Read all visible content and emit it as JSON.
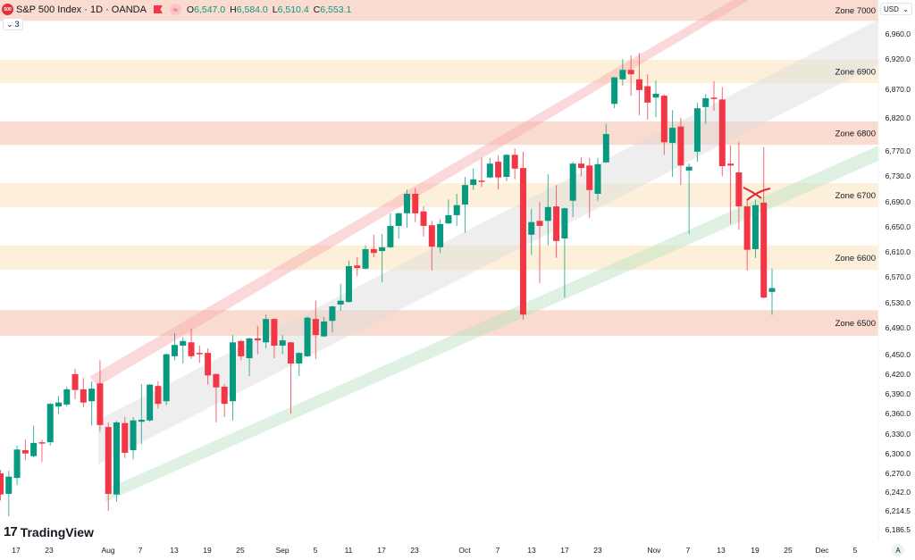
{
  "header": {
    "title": "S&P 500 Index · 1D · OANDA",
    "logo_text": "500",
    "ohlc": {
      "o_label": "O",
      "o": "6,547.0",
      "h_label": "H",
      "h": "6,584.0",
      "l_label": "L",
      "l": "6,510.4",
      "c_label": "C",
      "c": "6,553.1"
    },
    "collapse_label": "3",
    "icons": [
      "flag-icon",
      "approx-icon",
      "chevron-down-icon"
    ]
  },
  "price_axis": {
    "currency": "USD",
    "auto_label": "A",
    "ticks": [
      "6,960.0",
      "6,920.0",
      "6,870.0",
      "6,820.0",
      "6,770.0",
      "6,730.0",
      "6,690.0",
      "6,650.0",
      "6,610.0",
      "6,570.0",
      "6,530.0",
      "6,490.0",
      "6,450.0",
      "6,420.0",
      "6,390.0",
      "6,360.0",
      "6,330.0",
      "6,300.0",
      "6,270.0",
      "6,242.0",
      "6,214.5",
      "6,186.5"
    ]
  },
  "time_axis": {
    "ticks": [
      "17",
      "23",
      "Aug",
      "7",
      "13",
      "19",
      "25",
      "Sep",
      "5",
      "11",
      "17",
      "23",
      "Oct",
      "7",
      "13",
      "17",
      "23",
      "Nov",
      "7",
      "13",
      "19",
      "25",
      "Dec",
      "5"
    ]
  },
  "branding": {
    "name": "TradingView"
  },
  "colors": {
    "up": "#089981",
    "down": "#f23645",
    "zone_red": "#f9dccf",
    "zone_orange": "#fdf0db"
  },
  "zones": [
    {
      "label": "Zone 7000",
      "top": 7015,
      "bottom": 6978,
      "tone": "red"
    },
    {
      "label": "Zone 6900",
      "top": 6916,
      "bottom": 6879,
      "tone": "orange"
    },
    {
      "label": "Zone 6800",
      "top": 6818,
      "bottom": 6781,
      "tone": "red"
    },
    {
      "label": "Zone 6700",
      "top": 6720,
      "bottom": 6682,
      "tone": "orange"
    },
    {
      "label": "Zone 6600",
      "top": 6621,
      "bottom": 6582,
      "tone": "orange"
    },
    {
      "label": "Zone 6500",
      "top": 6518,
      "bottom": 6478,
      "tone": "red"
    }
  ],
  "chart_data": {
    "type": "candlestick",
    "symbol": "S&P 500 Index",
    "interval": "1D",
    "ylim": [
      6186.5,
      6990
    ],
    "candles": [
      [
        6270,
        6275,
        6229,
        6238
      ],
      [
        6239,
        6274,
        6205,
        6265
      ],
      [
        6263,
        6312,
        6252,
        6306
      ],
      [
        6305,
        6321,
        6290,
        6300
      ],
      [
        6296,
        6342,
        6294,
        6316
      ],
      [
        6317,
        6321,
        6287,
        6315
      ],
      [
        6317,
        6377,
        6312,
        6375
      ],
      [
        6371,
        6387,
        6360,
        6377
      ],
      [
        6374,
        6401,
        6371,
        6397
      ],
      [
        6420,
        6428,
        6382,
        6396
      ],
      [
        6397,
        6414,
        6370,
        6377
      ],
      [
        6379,
        6409,
        6342,
        6398
      ],
      [
        6406,
        6441,
        6333,
        6343
      ],
      [
        6340,
        6347,
        6213,
        6239
      ],
      [
        6238,
        6349,
        6227,
        6347
      ],
      [
        6346,
        6355,
        6293,
        6301
      ],
      [
        6305,
        6355,
        6291,
        6350
      ],
      [
        6348,
        6405,
        6314,
        6351
      ],
      [
        6350,
        6405,
        6348,
        6404
      ],
      [
        6402,
        6409,
        6368,
        6375
      ],
      [
        6379,
        6451,
        6373,
        6450
      ],
      [
        6447,
        6482,
        6441,
        6464
      ],
      [
        6463,
        6476,
        6436,
        6470
      ],
      [
        6468,
        6489,
        6443,
        6447
      ],
      [
        6452,
        6463,
        6437,
        6451
      ],
      [
        6452,
        6459,
        6404,
        6418
      ],
      [
        6420,
        6421,
        6347,
        6400
      ],
      [
        6401,
        6405,
        6355,
        6375
      ],
      [
        6379,
        6479,
        6350,
        6468
      ],
      [
        6470,
        6472,
        6441,
        6447
      ],
      [
        6444,
        6475,
        6417,
        6474
      ],
      [
        6474,
        6493,
        6450,
        6471
      ],
      [
        6468,
        6511,
        6459,
        6504
      ],
      [
        6504,
        6505,
        6444,
        6463
      ],
      [
        6463,
        6479,
        6450,
        6471
      ],
      [
        6468,
        6469,
        6360,
        6436
      ],
      [
        6436,
        6453,
        6417,
        6452
      ],
      [
        6447,
        6508,
        6446,
        6506
      ],
      [
        6504,
        6533,
        6443,
        6479
      ],
      [
        6477,
        6507,
        6476,
        6500
      ],
      [
        6501,
        6525,
        6483,
        6524
      ],
      [
        6527,
        6560,
        6517,
        6533
      ],
      [
        6531,
        6597,
        6530,
        6588
      ],
      [
        6589,
        6602,
        6572,
        6585
      ],
      [
        6584,
        6621,
        6583,
        6615
      ],
      [
        6615,
        6638,
        6602,
        6609
      ],
      [
        6612,
        6639,
        6562,
        6618
      ],
      [
        6618,
        6672,
        6617,
        6652
      ],
      [
        6652,
        6673,
        6632,
        6672
      ],
      [
        6672,
        6710,
        6649,
        6703
      ],
      [
        6703,
        6712,
        6658,
        6672
      ],
      [
        6675,
        6683,
        6635,
        6652
      ],
      [
        6653,
        6660,
        6581,
        6619
      ],
      [
        6618,
        6662,
        6609,
        6655
      ],
      [
        6656,
        6694,
        6655,
        6669
      ],
      [
        6669,
        6703,
        6652,
        6685
      ],
      [
        6686,
        6730,
        6641,
        6717
      ],
      [
        6717,
        6743,
        6709,
        6726
      ],
      [
        6724,
        6760,
        6714,
        6723
      ],
      [
        6729,
        6760,
        6728,
        6751
      ],
      [
        6754,
        6764,
        6710,
        6729
      ],
      [
        6730,
        6766,
        6723,
        6765
      ],
      [
        6765,
        6775,
        6726,
        6743
      ],
      [
        6744,
        6770,
        6503,
        6511
      ],
      [
        6638,
        6679,
        6606,
        6658
      ],
      [
        6660,
        6690,
        6561,
        6652
      ],
      [
        6660,
        6734,
        6621,
        6682
      ],
      [
        6683,
        6717,
        6601,
        6628
      ],
      [
        6632,
        6681,
        6538,
        6680
      ],
      [
        6692,
        6754,
        6666,
        6751
      ],
      [
        6751,
        6761,
        6731,
        6744
      ],
      [
        6748,
        6760,
        6665,
        6709
      ],
      [
        6703,
        6760,
        6692,
        6750
      ],
      [
        6753,
        6814,
        6752,
        6798
      ],
      [
        6846,
        6889,
        6839,
        6888
      ],
      [
        6885,
        6917,
        6875,
        6900
      ],
      [
        6900,
        6923,
        6859,
        6893
      ],
      [
        6885,
        6927,
        6828,
        6868
      ],
      [
        6874,
        6893,
        6821,
        6848
      ],
      [
        6856,
        6883,
        6825,
        6862
      ],
      [
        6859,
        6861,
        6765,
        6785
      ],
      [
        6784,
        6836,
        6730,
        6808
      ],
      [
        6810,
        6824,
        6717,
        6748
      ],
      [
        6740,
        6751,
        6639,
        6746
      ],
      [
        6770,
        6848,
        6754,
        6839
      ],
      [
        6841,
        6862,
        6814,
        6855
      ],
      [
        6856,
        6882,
        6835,
        6854
      ],
      [
        6853,
        6873,
        6731,
        6747
      ],
      [
        6751,
        6780,
        6655,
        6748
      ],
      [
        6737,
        6785,
        6646,
        6683
      ],
      [
        6683,
        6694,
        6581,
        6614
      ],
      [
        6615,
        6694,
        6601,
        6685
      ],
      [
        6689,
        6777,
        6537,
        6538
      ],
      [
        6547,
        6584,
        6510.4,
        6553.1
      ]
    ]
  }
}
